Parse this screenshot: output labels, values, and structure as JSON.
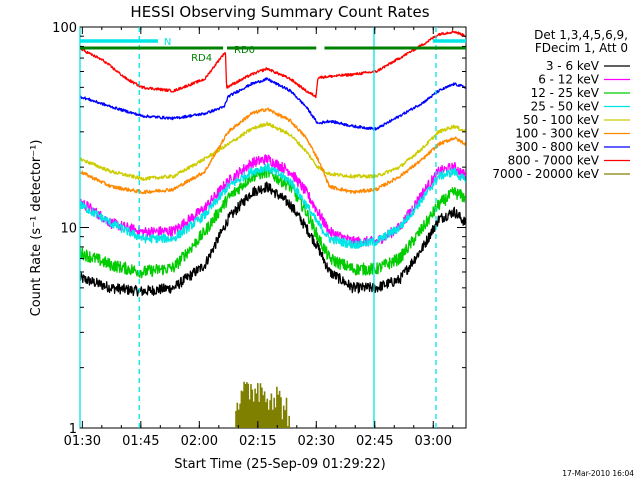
{
  "chart_data": {
    "type": "line",
    "title": "HESSI Observing Summary Count Rates",
    "xlabel": "Start Time (25-Sep-09 01:29:22)",
    "ylabel": "Count Rate (s⁻¹ detector⁻¹)",
    "ylog": true,
    "ylim": [
      1,
      100
    ],
    "xlim_minutes": [
      0,
      99
    ],
    "x_ticks": [
      {
        "label": "01:30",
        "t": 0.6
      },
      {
        "label": "01:45",
        "t": 15.6
      },
      {
        "label": "02:00",
        "t": 30.6
      },
      {
        "label": "02:15",
        "t": 45.6
      },
      {
        "label": "02:30",
        "t": 60.6
      },
      {
        "label": "02:45",
        "t": 75.6
      },
      {
        "label": "03:00",
        "t": 90.6
      }
    ],
    "y_ticks": [
      {
        "label": "1",
        "v": 1
      },
      {
        "label": "10",
        "v": 10
      },
      {
        "label": "100",
        "v": 100
      }
    ],
    "legend_header": [
      "Det 1,3,4,5,6,9,",
      "FDecim 1, Att 0"
    ],
    "legend_position": "right",
    "footer_date": "17-Mar-2010 16:04",
    "annotations": [
      {
        "label": "N",
        "kind": "cyan-bar"
      },
      {
        "label": "RD4",
        "kind": "green-label"
      },
      {
        "label": "RD0",
        "kind": "green-label"
      }
    ],
    "night_bars": [
      [
        0,
        20
      ],
      [
        90.5,
        99
      ]
    ],
    "decimation_bars": [
      [
        0,
        36.7
      ],
      [
        37.7,
        60.6
      ],
      [
        62.7,
        99
      ]
    ],
    "vlines": [
      {
        "t": 0,
        "style": "solid"
      },
      {
        "t": 15.2,
        "style": "dashed"
      },
      {
        "t": 75.4,
        "style": "solid"
      },
      {
        "t": 91.3,
        "style": "dashed"
      }
    ],
    "series": [
      {
        "name": "3 - 6 keV",
        "color": "#000000",
        "key": [
          [
            0,
            5.6
          ],
          [
            8,
            5.0
          ],
          [
            16,
            4.8
          ],
          [
            24,
            5.0
          ],
          [
            32,
            6.5
          ],
          [
            38,
            11
          ],
          [
            44,
            15
          ],
          [
            48,
            16
          ],
          [
            54,
            13
          ],
          [
            58,
            10
          ],
          [
            61,
            8
          ],
          [
            64,
            6
          ],
          [
            70,
            5
          ],
          [
            76,
            5
          ],
          [
            82,
            5.5
          ],
          [
            88,
            8
          ],
          [
            92,
            11
          ],
          [
            96,
            12
          ],
          [
            99,
            10.5
          ]
        ],
        "noise": 0.06
      },
      {
        "name": "6 - 12 keV",
        "color": "#ff00ff",
        "key": [
          [
            0,
            13.5
          ],
          [
            8,
            10.5
          ],
          [
            16,
            9.5
          ],
          [
            24,
            9.6
          ],
          [
            32,
            12.5
          ],
          [
            38,
            17
          ],
          [
            44,
            21
          ],
          [
            48,
            22
          ],
          [
            54,
            19
          ],
          [
            58,
            15
          ],
          [
            61,
            12
          ],
          [
            64,
            9.5
          ],
          [
            70,
            8.5
          ],
          [
            76,
            8.5
          ],
          [
            82,
            10
          ],
          [
            88,
            15
          ],
          [
            92,
            19
          ],
          [
            96,
            20
          ],
          [
            99,
            18
          ]
        ],
        "noise": 0.06
      },
      {
        "name": "12 - 25 keV",
        "color": "#00cc00",
        "key": [
          [
            0,
            7.5
          ],
          [
            8,
            6.5
          ],
          [
            16,
            6.0
          ],
          [
            24,
            6.3
          ],
          [
            32,
            9.5
          ],
          [
            38,
            14
          ],
          [
            44,
            18
          ],
          [
            48,
            19
          ],
          [
            54,
            16
          ],
          [
            58,
            12
          ],
          [
            61,
            9
          ],
          [
            64,
            7
          ],
          [
            70,
            6.2
          ],
          [
            76,
            6.2
          ],
          [
            82,
            7
          ],
          [
            88,
            10
          ],
          [
            92,
            13
          ],
          [
            96,
            15
          ],
          [
            99,
            14
          ]
        ],
        "noise": 0.07
      },
      {
        "name": "25 - 50 keV",
        "color": "#00e5e5",
        "key": [
          [
            0,
            13
          ],
          [
            8,
            10.5
          ],
          [
            16,
            8.8
          ],
          [
            24,
            8.8
          ],
          [
            32,
            11.5
          ],
          [
            38,
            16
          ],
          [
            44,
            19
          ],
          [
            48,
            20
          ],
          [
            54,
            17
          ],
          [
            58,
            13
          ],
          [
            61,
            10.5
          ],
          [
            64,
            8.8
          ],
          [
            70,
            8.2
          ],
          [
            76,
            8.5
          ],
          [
            82,
            10
          ],
          [
            88,
            14
          ],
          [
            92,
            18
          ],
          [
            96,
            19
          ],
          [
            99,
            17
          ]
        ],
        "noise": 0.05
      },
      {
        "name": "50 - 100 keV",
        "color": "#cccc00",
        "key": [
          [
            0,
            22
          ],
          [
            8,
            19
          ],
          [
            16,
            17.5
          ],
          [
            24,
            18
          ],
          [
            32,
            22
          ],
          [
            38,
            26
          ],
          [
            44,
            31
          ],
          [
            48,
            33
          ],
          [
            54,
            29
          ],
          [
            58,
            24
          ],
          [
            61,
            20
          ],
          [
            64,
            18.5
          ],
          [
            70,
            18
          ],
          [
            76,
            18
          ],
          [
            82,
            20
          ],
          [
            88,
            25
          ],
          [
            92,
            30
          ],
          [
            96,
            32
          ],
          [
            99,
            30
          ]
        ],
        "noise": 0.02
      },
      {
        "name": "100 - 300 keV",
        "color": "#ff8800",
        "key": [
          [
            0,
            19
          ],
          [
            8,
            16
          ],
          [
            16,
            15
          ],
          [
            24,
            15.5
          ],
          [
            32,
            19
          ],
          [
            38,
            30
          ],
          [
            44,
            37
          ],
          [
            48,
            39
          ],
          [
            54,
            34
          ],
          [
            58,
            28
          ],
          [
            61,
            22
          ],
          [
            64,
            16
          ],
          [
            70,
            15
          ],
          [
            76,
            15.5
          ],
          [
            82,
            18
          ],
          [
            88,
            22
          ],
          [
            92,
            26
          ],
          [
            96,
            28
          ],
          [
            99,
            26
          ]
        ],
        "noise": 0.02
      },
      {
        "name": "300 - 800 keV",
        "color": "#0000ff",
        "key": [
          [
            0,
            45
          ],
          [
            8,
            40
          ],
          [
            16,
            36
          ],
          [
            24,
            35
          ],
          [
            32,
            37
          ],
          [
            37,
            40
          ],
          [
            38,
            45
          ],
          [
            44,
            52
          ],
          [
            48,
            55
          ],
          [
            54,
            48
          ],
          [
            58,
            40
          ],
          [
            61,
            33
          ],
          [
            64,
            34
          ],
          [
            70,
            32
          ],
          [
            76,
            31
          ],
          [
            82,
            36
          ],
          [
            88,
            42
          ],
          [
            92,
            48
          ],
          [
            96,
            52
          ],
          [
            99,
            50
          ]
        ],
        "noise": 0.015
      },
      {
        "name": "800 - 7000 keV",
        "color": "#ff0000",
        "key": [
          [
            0,
            78
          ],
          [
            6,
            68
          ],
          [
            12,
            55
          ],
          [
            16,
            50
          ],
          [
            24,
            48
          ],
          [
            32,
            55
          ],
          [
            36,
            70
          ],
          [
            37.3,
            75
          ],
          [
            37.6,
            50
          ],
          [
            44,
            58
          ],
          [
            48,
            62
          ],
          [
            54,
            55
          ],
          [
            58,
            48
          ],
          [
            60.5,
            45
          ],
          [
            61,
            56
          ],
          [
            70,
            58
          ],
          [
            76,
            60
          ],
          [
            82,
            70
          ],
          [
            88,
            82
          ],
          [
            92,
            92
          ],
          [
            96,
            95
          ],
          [
            99,
            90
          ]
        ],
        "noise": 0.015
      },
      {
        "name": "7000 - 20000 keV",
        "color": "#808000",
        "key": [
          [
            40,
            1.25
          ],
          [
            45,
            1.5
          ],
          [
            50,
            1.35
          ],
          [
            54,
            1.1
          ]
        ],
        "noise": 0.4
      }
    ]
  }
}
